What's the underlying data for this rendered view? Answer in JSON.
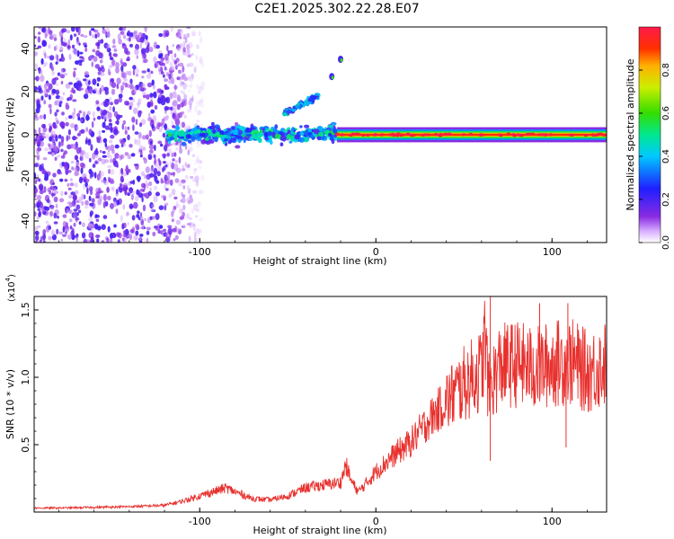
{
  "title": "C2E1.2025.302.22.28.E07",
  "colors": {
    "spectrogram_noise": "#7a2be0",
    "line_color": "#e8312e",
    "axis": "#000000"
  },
  "chart_data": [
    {
      "type": "heatmap",
      "name": "spectrogram",
      "xlabel": "Height of straight line (km)",
      "ylabel": "Frequency (Hz)",
      "xlim": [
        -194,
        131
      ],
      "ylim": [
        -50,
        50
      ],
      "xticks": [
        -100,
        0,
        100
      ],
      "xtick_labels": [
        "-100",
        "0",
        "100"
      ],
      "yticks": [
        -40,
        -20,
        0,
        20,
        40
      ],
      "ytick_labels": [
        "-40",
        "-20",
        "0",
        "20",
        "40"
      ],
      "colorbar": {
        "label": "Normalized spectral amplitude",
        "range": [
          0,
          1
        ],
        "ticks": [
          0.0,
          0.2,
          0.4,
          0.6,
          0.8
        ],
        "tick_labels": [
          "0.0",
          "0.2",
          "0.4",
          "0.6",
          "0.8"
        ]
      },
      "features": [
        {
          "description": "broadband noise",
          "x_range": [
            -194,
            -105
          ],
          "freq_range": [
            -50,
            50
          ],
          "amplitude": 0.15
        },
        {
          "description": "main band",
          "x_range": [
            -118,
            -22
          ],
          "freq_center": 0,
          "freq_halfwidth": 5,
          "amplitude": 0.45
        },
        {
          "description": "upper branch",
          "x_range": [
            -52,
            -32
          ],
          "freq_range": [
            10,
            18
          ],
          "amplitude": 0.35
        },
        {
          "description": "rising points",
          "points": [
            [
              -25,
              27
            ],
            [
              -20,
              35
            ]
          ],
          "amplitude": 0.2
        },
        {
          "description": "stable carrier",
          "x_range": [
            -22,
            131
          ],
          "freq_center": 0,
          "amplitude": 0.9
        }
      ]
    },
    {
      "type": "line",
      "name": "snr",
      "xlabel": "Height of straight line (km)",
      "ylabel": "SNR (10 * v/v)",
      "y_scale_label": "(x10",
      "y_scale_exponent": "4",
      "xlim": [
        -194,
        131
      ],
      "ylim": [
        0,
        16000
      ],
      "xticks": [
        -100,
        0,
        100
      ],
      "xtick_labels": [
        "-100",
        "0",
        "100"
      ],
      "yticks": [
        5000,
        10000,
        15000
      ],
      "ytick_labels": [
        "0.5",
        "1.0",
        "1.5"
      ],
      "series": [
        {
          "name": "SNR",
          "x": [
            -194,
            -180,
            -160,
            -140,
            -120,
            -110,
            -100,
            -90,
            -85,
            -80,
            -70,
            -60,
            -50,
            -45,
            -40,
            -30,
            -20,
            -17,
            -14,
            -10,
            -5,
            0,
            10,
            20,
            30,
            40,
            50,
            60,
            62,
            64,
            70,
            80,
            90,
            100,
            110,
            120,
            131
          ],
          "y": [
            300,
            300,
            350,
            400,
            500,
            800,
            1200,
            1600,
            1800,
            1500,
            1000,
            900,
            1200,
            1500,
            1800,
            2000,
            2200,
            3500,
            2300,
            1500,
            2200,
            3000,
            4200,
            5200,
            6800,
            8200,
            9500,
            10500,
            13000,
            9000,
            10800,
            11000,
            10600,
            11000,
            11200,
            10400,
            11000
          ]
        }
      ],
      "spikes": [
        {
          "x": 65,
          "y": 16000
        },
        {
          "x": 65,
          "y": 3800
        },
        {
          "x": 93,
          "y": 15500
        },
        {
          "x": 108,
          "y": 4800
        },
        {
          "x": 109,
          "y": 15500
        }
      ]
    }
  ]
}
